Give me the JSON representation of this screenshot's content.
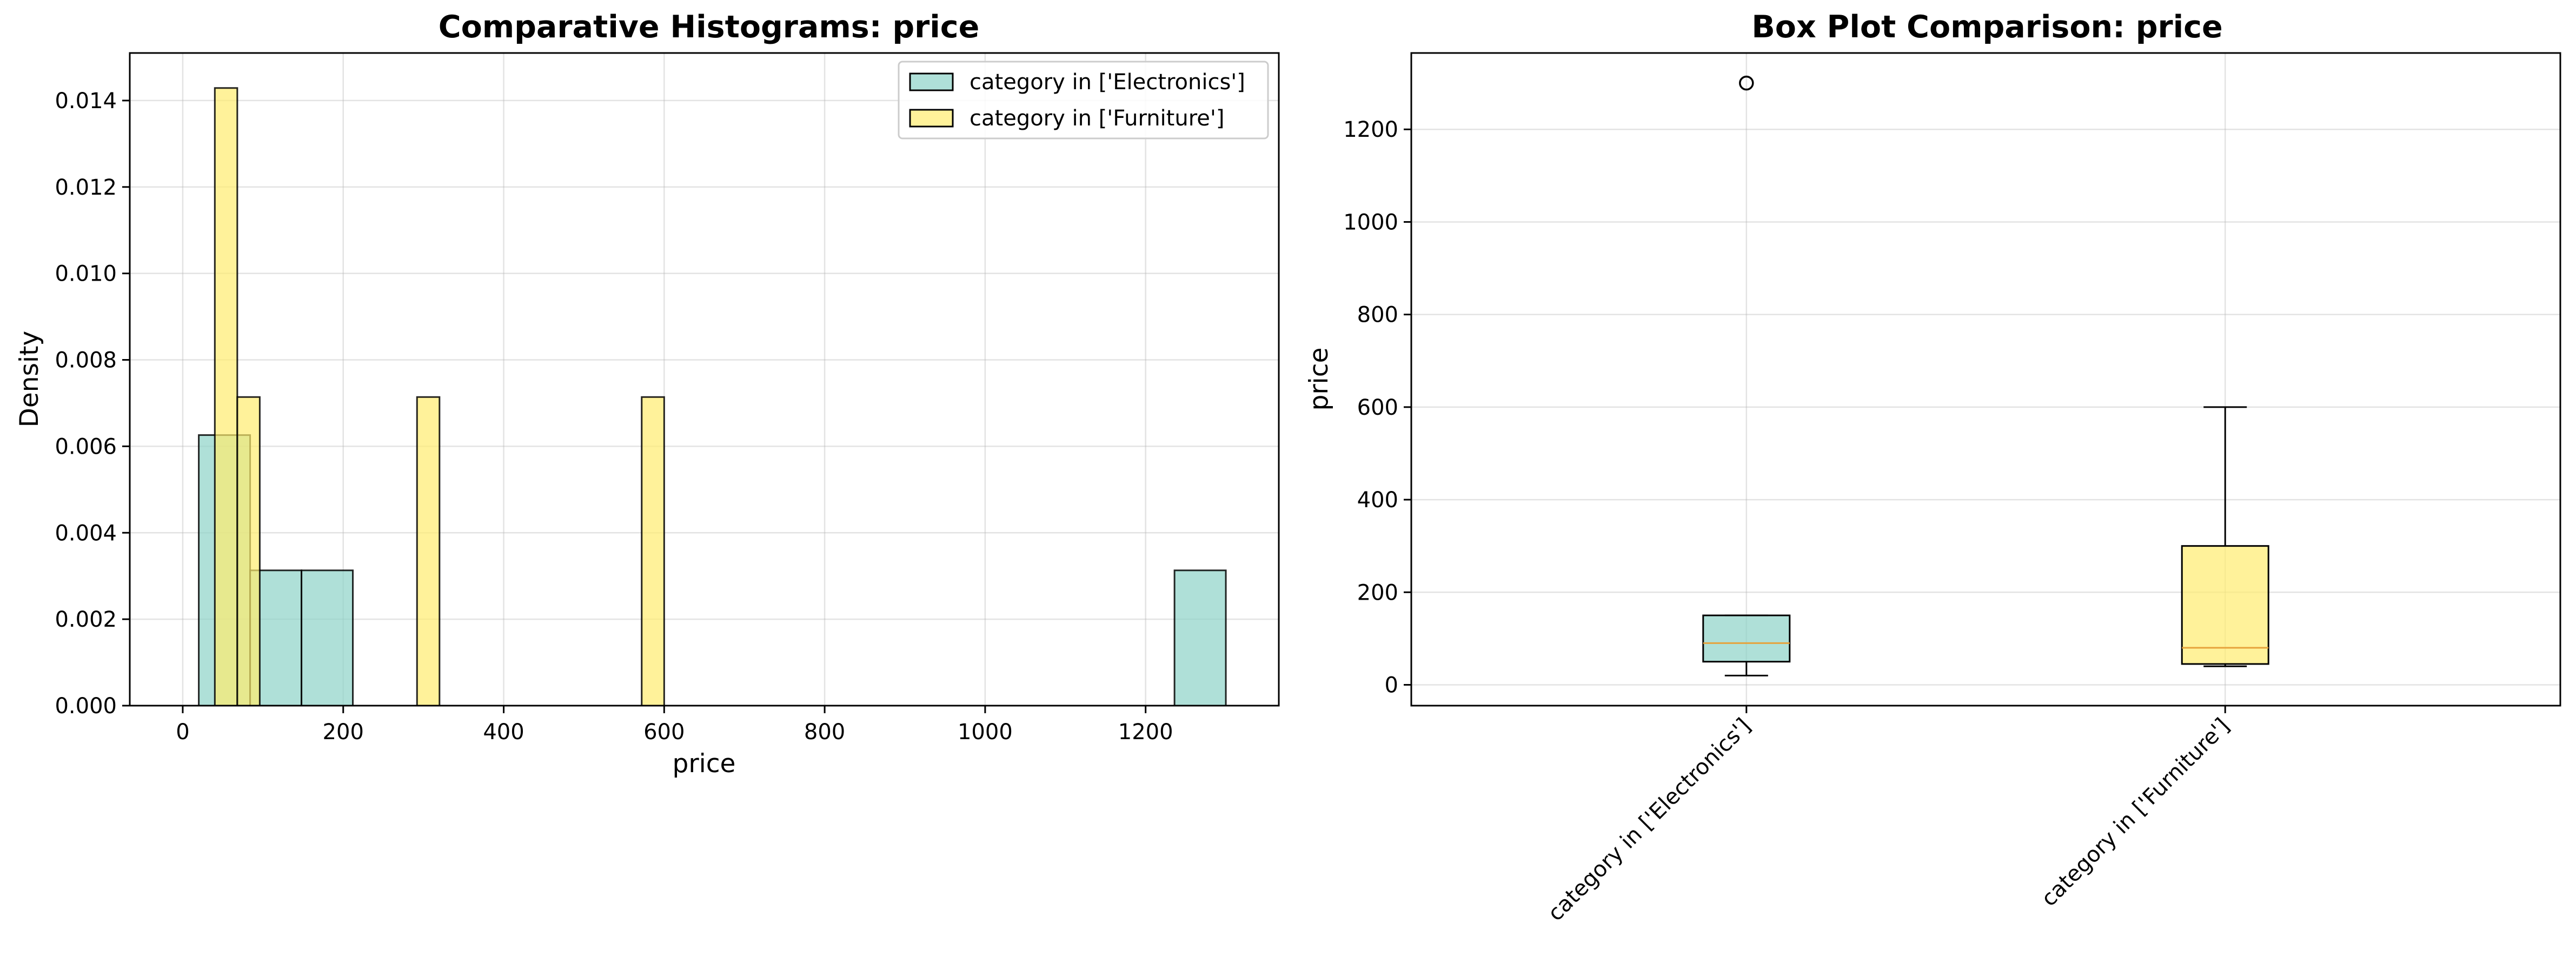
{
  "chart_data": [
    {
      "type": "histogram",
      "title": "Comparative Histograms: price",
      "xlabel": "price",
      "ylabel": "Density",
      "xlim": [
        -66,
        1366
      ],
      "ylim": [
        0,
        0.0151
      ],
      "xticks": [
        0,
        200,
        400,
        600,
        800,
        1000,
        1200
      ],
      "yticks": [
        0.0,
        0.002,
        0.004,
        0.006,
        0.008,
        0.01,
        0.012,
        0.014
      ],
      "ytick_labels": [
        "0.000",
        "0.002",
        "0.004",
        "0.006",
        "0.008",
        "0.010",
        "0.012",
        "0.014"
      ],
      "grid": true,
      "legend_position": "upper right",
      "series": [
        {
          "name": "category in ['Electronics']",
          "color": "#8dd3c7",
          "bins": [
            {
              "x0": 20,
              "x1": 84,
              "density": 0.00626
            },
            {
              "x0": 84,
              "x1": 148,
              "density": 0.00313
            },
            {
              "x0": 148,
              "x1": 212,
              "density": 0.00313
            },
            {
              "x0": 1236,
              "x1": 1300,
              "density": 0.00313
            }
          ]
        },
        {
          "name": "category in ['Furniture']",
          "color": "#ffed6f",
          "bins": [
            {
              "x0": 40,
              "x1": 68,
              "density": 0.01429
            },
            {
              "x0": 68,
              "x1": 96,
              "density": 0.00714
            },
            {
              "x0": 292,
              "x1": 320,
              "density": 0.00714
            },
            {
              "x0": 572,
              "x1": 600,
              "density": 0.00714
            }
          ]
        }
      ]
    },
    {
      "type": "box",
      "title": "Box Plot Comparison: price",
      "xlabel": "",
      "ylabel": "price",
      "ylim": [
        -45,
        1365
      ],
      "yticks": [
        0,
        200,
        400,
        600,
        800,
        1000,
        1200
      ],
      "grid": true,
      "categories": [
        "category in ['Electronics']",
        "category in ['Furniture']"
      ],
      "boxes": [
        {
          "name": "category in ['Electronics']",
          "color": "#8dd3c7",
          "whisker_low": 20,
          "q1": 50,
          "median": 90,
          "q3": 150,
          "whisker_high": 150,
          "outliers": [
            1300
          ]
        },
        {
          "name": "category in ['Furniture']",
          "color": "#ffed6f",
          "whisker_low": 40,
          "q1": 45,
          "median": 80,
          "q3": 300,
          "whisker_high": 600,
          "outliers": []
        }
      ]
    }
  ]
}
